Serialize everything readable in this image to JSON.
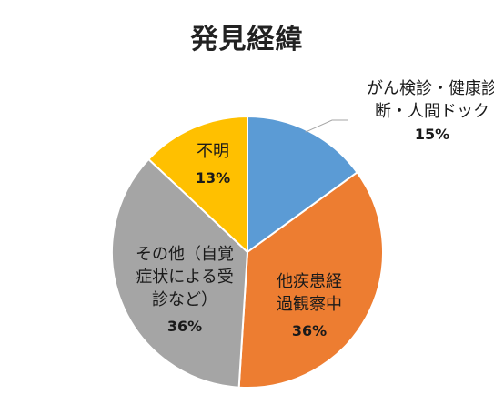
{
  "chart_data": {
    "type": "pie",
    "title": "発見経緯",
    "slices": [
      {
        "name": "がん検診・健康診断・人間ドック",
        "label_lines": [
          "がん検診・健康診",
          "断・人間ドック"
        ],
        "value": 15,
        "value_label": "15%",
        "color": "#5B9BD5"
      },
      {
        "name": "他疾患経過観察中",
        "label_lines": [
          "他疾患経",
          "過観察中"
        ],
        "value": 36,
        "value_label": "36%",
        "color": "#ED7D31"
      },
      {
        "name": "その他（自覚症状による受診など）",
        "label_lines": [
          "その他（自覚",
          "症状による受",
          "診など）"
        ],
        "value": 36,
        "value_label": "36%",
        "color": "#A5A5A5"
      },
      {
        "name": "不明",
        "label_lines": [
          "不明"
        ],
        "value": 13,
        "value_label": "13%",
        "color": "#FFC000"
      }
    ],
    "legend": "none"
  }
}
